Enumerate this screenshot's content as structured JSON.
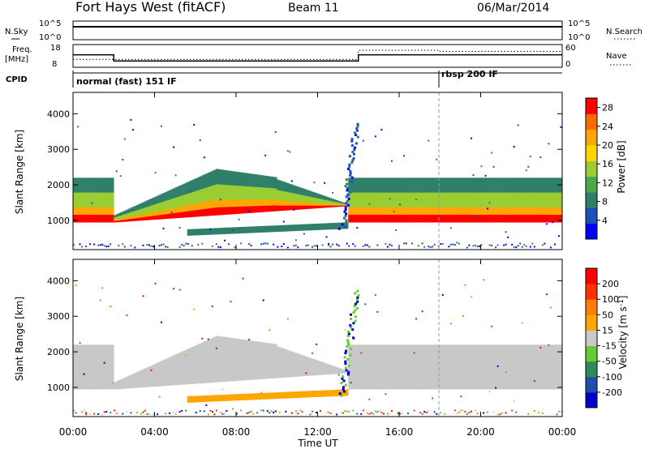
{
  "header": {
    "station": "Fort Hays West (fitACF)",
    "beam": "Beam 11",
    "date": "06/Mar/2014"
  },
  "labels": {
    "nsky": "N.Sky",
    "nsearch": "N.Search",
    "freq": "Freq.",
    "freq_unit": "[MHz]",
    "nave": "Nave",
    "cpid": "CPID",
    "noise_top_tick": "10^5",
    "noise_bottom_tick": "10^0",
    "freq_top_tick": "18",
    "freq_bottom_tick": "8",
    "nave_top_tick": "60",
    "nave_bottom_tick": "0",
    "cpid_mode_1": "normal (fast) 151 IF",
    "cpid_mode_2": "rbsp 200 IF"
  },
  "chart_data": [
    {
      "type": "line",
      "panel": "noise",
      "series": [
        {
          "name": "N.Sky",
          "x": [
            0,
            4,
            8,
            12,
            16,
            20,
            24
          ],
          "values": [
            3000,
            3000,
            3000,
            3000,
            3000,
            3000,
            3000
          ]
        },
        {
          "name": "N.Search",
          "x": [
            0,
            4,
            8,
            12,
            16,
            20,
            24
          ],
          "values": [
            2500,
            2500,
            2500,
            2500,
            2500,
            2500,
            2500
          ]
        }
      ],
      "ylim": [
        1,
        100000
      ],
      "yscale": "log"
    },
    {
      "type": "line",
      "panel": "frequency",
      "series": [
        {
          "name": "Freq.",
          "x": [
            0,
            2,
            2,
            14,
            14,
            24
          ],
          "values": [
            13.5,
            13.5,
            10.8,
            10.8,
            13.5,
            13.5
          ]
        },
        {
          "name": "Nave",
          "x": [
            0,
            14,
            14,
            18,
            18,
            24
          ],
          "values": [
            21,
            21,
            45,
            45,
            42,
            42
          ]
        }
      ],
      "ylim": [
        8,
        18
      ],
      "y2lim": [
        0,
        60
      ]
    },
    {
      "type": "table",
      "panel": "cpid",
      "x": [
        0,
        18
      ],
      "values": [
        "normal (fast) 151 IF",
        "rbsp 200 IF"
      ]
    },
    {
      "type": "heatmap",
      "panel": "power",
      "xlabel": "",
      "ylabel": "Slant Range [km]",
      "x_ticks": [
        "00:00",
        "04:00",
        "08:00",
        "12:00",
        "16:00",
        "20:00",
        "00:00"
      ],
      "y_ticks": [
        "1000",
        "2000",
        "3000",
        "4000"
      ],
      "xlim": [
        0,
        24
      ],
      "ylim": [
        180,
        4600
      ],
      "colorbar": {
        "label": "Power [dB]",
        "ticks": [
          "4",
          "8",
          "12",
          "16",
          "20",
          "24",
          "28"
        ],
        "range": [
          0,
          30
        ],
        "colors": [
          "#0000ff",
          "#1d4fb8",
          "#2f7f6a",
          "#4aa84a",
          "#9acd32",
          "#ffd700",
          "#ffa500",
          "#ff6a00",
          "#ff0000"
        ]
      }
    },
    {
      "type": "heatmap",
      "panel": "velocity",
      "xlabel": "Time UT",
      "ylabel": "Slant Range [km]",
      "x_ticks": [
        "00:00",
        "04:00",
        "08:00",
        "12:00",
        "16:00",
        "20:00",
        "00:00"
      ],
      "y_ticks": [
        "1000",
        "2000",
        "3000",
        "4000"
      ],
      "xlim": [
        0,
        24
      ],
      "ylim": [
        180,
        4600
      ],
      "colorbar": {
        "label": "Velocity [m s-1]",
        "ticks": [
          "200",
          "100",
          "50",
          "15",
          "-15",
          "-50",
          "-100",
          "-200"
        ],
        "range": [
          -250,
          250
        ],
        "colors": [
          "#0000cc",
          "#1f4fa8",
          "#2e8b57",
          "#66cc33",
          "#c8c8c8",
          "#ffa500",
          "#ff7f00",
          "#ff3300",
          "#ff0000"
        ]
      }
    }
  ]
}
